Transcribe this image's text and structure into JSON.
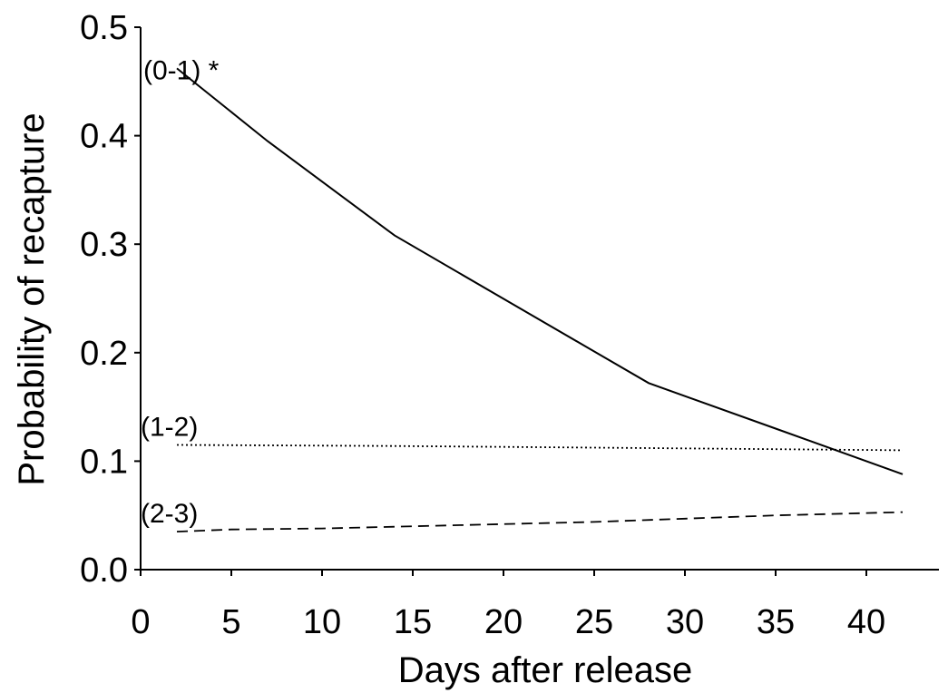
{
  "chart_data": {
    "type": "line",
    "title": "",
    "xlabel": "Days after release",
    "ylabel": "Probability of recapture",
    "xlim": [
      0,
      44
    ],
    "ylim": [
      0,
      0.5
    ],
    "xticks": [
      0,
      5,
      10,
      15,
      20,
      25,
      30,
      35,
      40
    ],
    "yticks": [
      0.0,
      0.1,
      0.2,
      0.3,
      0.4,
      0.5
    ],
    "ytick_labels": [
      "0.0",
      "0.1",
      "0.2",
      "0.3",
      "0.4",
      "0.5"
    ],
    "grid": false,
    "legend": "none",
    "series": [
      {
        "name": "(0-1) *",
        "style": "solid",
        "x": [
          2,
          7,
          14,
          21,
          28,
          35,
          42
        ],
        "y": [
          0.462,
          0.395,
          0.308,
          0.24,
          0.172,
          0.13,
          0.088
        ]
      },
      {
        "name": "(1-2)",
        "style": "dotted",
        "x": [
          2,
          14,
          28,
          42
        ],
        "y": [
          0.115,
          0.114,
          0.112,
          0.11
        ]
      },
      {
        "name": "(2-3)",
        "style": "dashed",
        "x": [
          2,
          5,
          10,
          15,
          20,
          25,
          30,
          35,
          42
        ],
        "y": [
          0.035,
          0.037,
          0.038,
          0.04,
          0.042,
          0.044,
          0.047,
          0.05,
          0.053
        ]
      }
    ]
  }
}
